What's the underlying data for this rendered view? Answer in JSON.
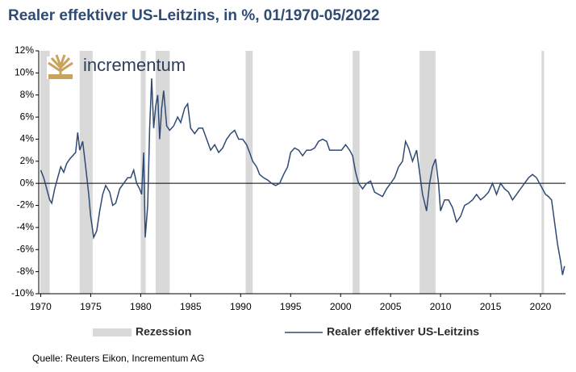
{
  "chart_data": {
    "type": "line",
    "title": "Realer effektiver US-Leitzins, in %, 01/1970-05/2022",
    "logo": "incrementum",
    "source": "Quelle: Reuters Eikon, Incrementum AG",
    "xlim": [
      1969.8,
      2022.5
    ],
    "xticks": [
      1970,
      1975,
      1980,
      1985,
      1990,
      1995,
      2000,
      2005,
      2010,
      2015,
      2020
    ],
    "ylim": [
      -10,
      12
    ],
    "yticks": [
      {
        "value": -10,
        "label": "-10%"
      },
      {
        "value": -8,
        "label": "-8%"
      },
      {
        "value": -6,
        "label": "-6%"
      },
      {
        "value": -4,
        "label": "-4%"
      },
      {
        "value": -2,
        "label": "-2%"
      },
      {
        "value": 0,
        "label": "0%"
      },
      {
        "value": 2,
        "label": "2%"
      },
      {
        "value": 4,
        "label": "4%"
      },
      {
        "value": 6,
        "label": "6%"
      },
      {
        "value": 8,
        "label": "8%"
      },
      {
        "value": 10,
        "label": "10%"
      },
      {
        "value": 12,
        "label": "12%"
      }
    ],
    "recessions": {
      "name": "Rezession",
      "color": "#d9d9d9",
      "ranges": [
        [
          1969.95,
          1970.9
        ],
        [
          1973.9,
          1975.2
        ],
        [
          1980.0,
          1980.5
        ],
        [
          1981.5,
          1982.9
        ],
        [
          1990.5,
          1991.2
        ],
        [
          2001.2,
          2001.9
        ],
        [
          2007.9,
          2009.5
        ],
        [
          2020.1,
          2020.35
        ]
      ]
    },
    "series": [
      {
        "name": "Realer effektiver US-Leitzins",
        "color": "#2f4a73",
        "x": [
          1970.0,
          1970.3,
          1970.6,
          1970.9,
          1971.1,
          1971.4,
          1971.7,
          1972.0,
          1972.3,
          1972.6,
          1972.9,
          1973.2,
          1973.5,
          1973.7,
          1973.9,
          1974.2,
          1974.5,
          1974.8,
          1975.0,
          1975.3,
          1975.6,
          1975.9,
          1976.2,
          1976.5,
          1976.9,
          1977.2,
          1977.5,
          1977.9,
          1978.3,
          1978.7,
          1979.0,
          1979.3,
          1979.6,
          1979.9,
          1980.1,
          1980.3,
          1980.45,
          1980.7,
          1980.9,
          1981.1,
          1981.3,
          1981.5,
          1981.7,
          1981.9,
          1982.1,
          1982.3,
          1982.6,
          1982.9,
          1983.3,
          1983.7,
          1984.0,
          1984.4,
          1984.7,
          1985.0,
          1985.4,
          1985.8,
          1986.2,
          1986.6,
          1987.0,
          1987.4,
          1987.8,
          1988.2,
          1988.6,
          1989.0,
          1989.4,
          1989.8,
          1990.2,
          1990.6,
          1990.9,
          1991.2,
          1991.6,
          1991.9,
          1992.3,
          1992.7,
          1993.1,
          1993.5,
          1993.9,
          1994.3,
          1994.7,
          1995.0,
          1995.4,
          1995.8,
          1996.2,
          1996.6,
          1997.0,
          1997.4,
          1997.8,
          1998.2,
          1998.6,
          1998.9,
          1999.3,
          1999.7,
          2000.1,
          2000.5,
          2000.9,
          2001.2,
          2001.5,
          2001.8,
          2002.2,
          2002.6,
          2003.0,
          2003.4,
          2003.8,
          2004.2,
          2004.6,
          2005.0,
          2005.4,
          2005.8,
          2006.2,
          2006.5,
          2006.8,
          2007.2,
          2007.6,
          2007.9,
          2008.2,
          2008.6,
          2008.9,
          2009.2,
          2009.5,
          2009.8,
          2010.0,
          2010.4,
          2010.8,
          2011.2,
          2011.6,
          2012.0,
          2012.4,
          2012.8,
          2013.2,
          2013.6,
          2014.0,
          2014.4,
          2014.8,
          2015.2,
          2015.6,
          2016.0,
          2016.4,
          2016.8,
          2017.2,
          2017.6,
          2018.0,
          2018.4,
          2018.8,
          2019.2,
          2019.6,
          2019.9,
          2020.2,
          2020.5,
          2020.8,
          2021.1,
          2021.4,
          2021.7,
          2022.0,
          2022.2,
          2022.4
        ],
        "values": [
          1.2,
          0.5,
          -0.5,
          -1.5,
          -1.8,
          -0.5,
          0.5,
          1.5,
          1.0,
          1.8,
          2.2,
          2.5,
          2.8,
          4.6,
          3.0,
          3.8,
          1.5,
          -1.0,
          -3.0,
          -4.9,
          -4.3,
          -2.5,
          -1.0,
          -0.2,
          -0.8,
          -2.0,
          -1.8,
          -0.5,
          0.0,
          0.5,
          0.5,
          1.2,
          0.0,
          -0.5,
          -1.0,
          2.8,
          -4.9,
          -2.0,
          5.0,
          9.5,
          5.0,
          7.0,
          8.0,
          4.0,
          6.8,
          8.4,
          5.2,
          4.8,
          5.2,
          6.0,
          5.5,
          6.8,
          7.2,
          5.0,
          4.5,
          5.0,
          5.0,
          4.0,
          3.0,
          3.5,
          2.8,
          3.2,
          4.0,
          4.5,
          4.8,
          4.0,
          4.0,
          3.5,
          2.8,
          2.0,
          1.5,
          0.8,
          0.5,
          0.3,
          0.0,
          -0.2,
          0.0,
          0.8,
          1.5,
          2.8,
          3.2,
          3.0,
          2.5,
          3.0,
          3.0,
          3.2,
          3.8,
          4.0,
          3.8,
          3.0,
          3.0,
          3.0,
          3.0,
          3.5,
          3.0,
          2.5,
          1.0,
          0.0,
          -0.5,
          0.0,
          0.2,
          -0.8,
          -1.0,
          -1.2,
          -0.5,
          0.0,
          0.5,
          1.5,
          2.0,
          3.8,
          3.2,
          2.0,
          3.0,
          1.0,
          -1.0,
          -2.5,
          0.0,
          1.5,
          2.2,
          0.0,
          -2.5,
          -1.5,
          -1.5,
          -2.2,
          -3.5,
          -3.0,
          -2.0,
          -1.8,
          -1.5,
          -1.0,
          -1.5,
          -1.2,
          -0.8,
          0.0,
          -1.0,
          0.0,
          -0.5,
          -0.8,
          -1.5,
          -1.0,
          -0.5,
          0.0,
          0.5,
          0.8,
          0.5,
          0.0,
          -0.5,
          -1.0,
          -1.2,
          -1.5,
          -3.5,
          -5.5,
          -7.0,
          -8.3,
          -7.5
        ]
      }
    ]
  }
}
